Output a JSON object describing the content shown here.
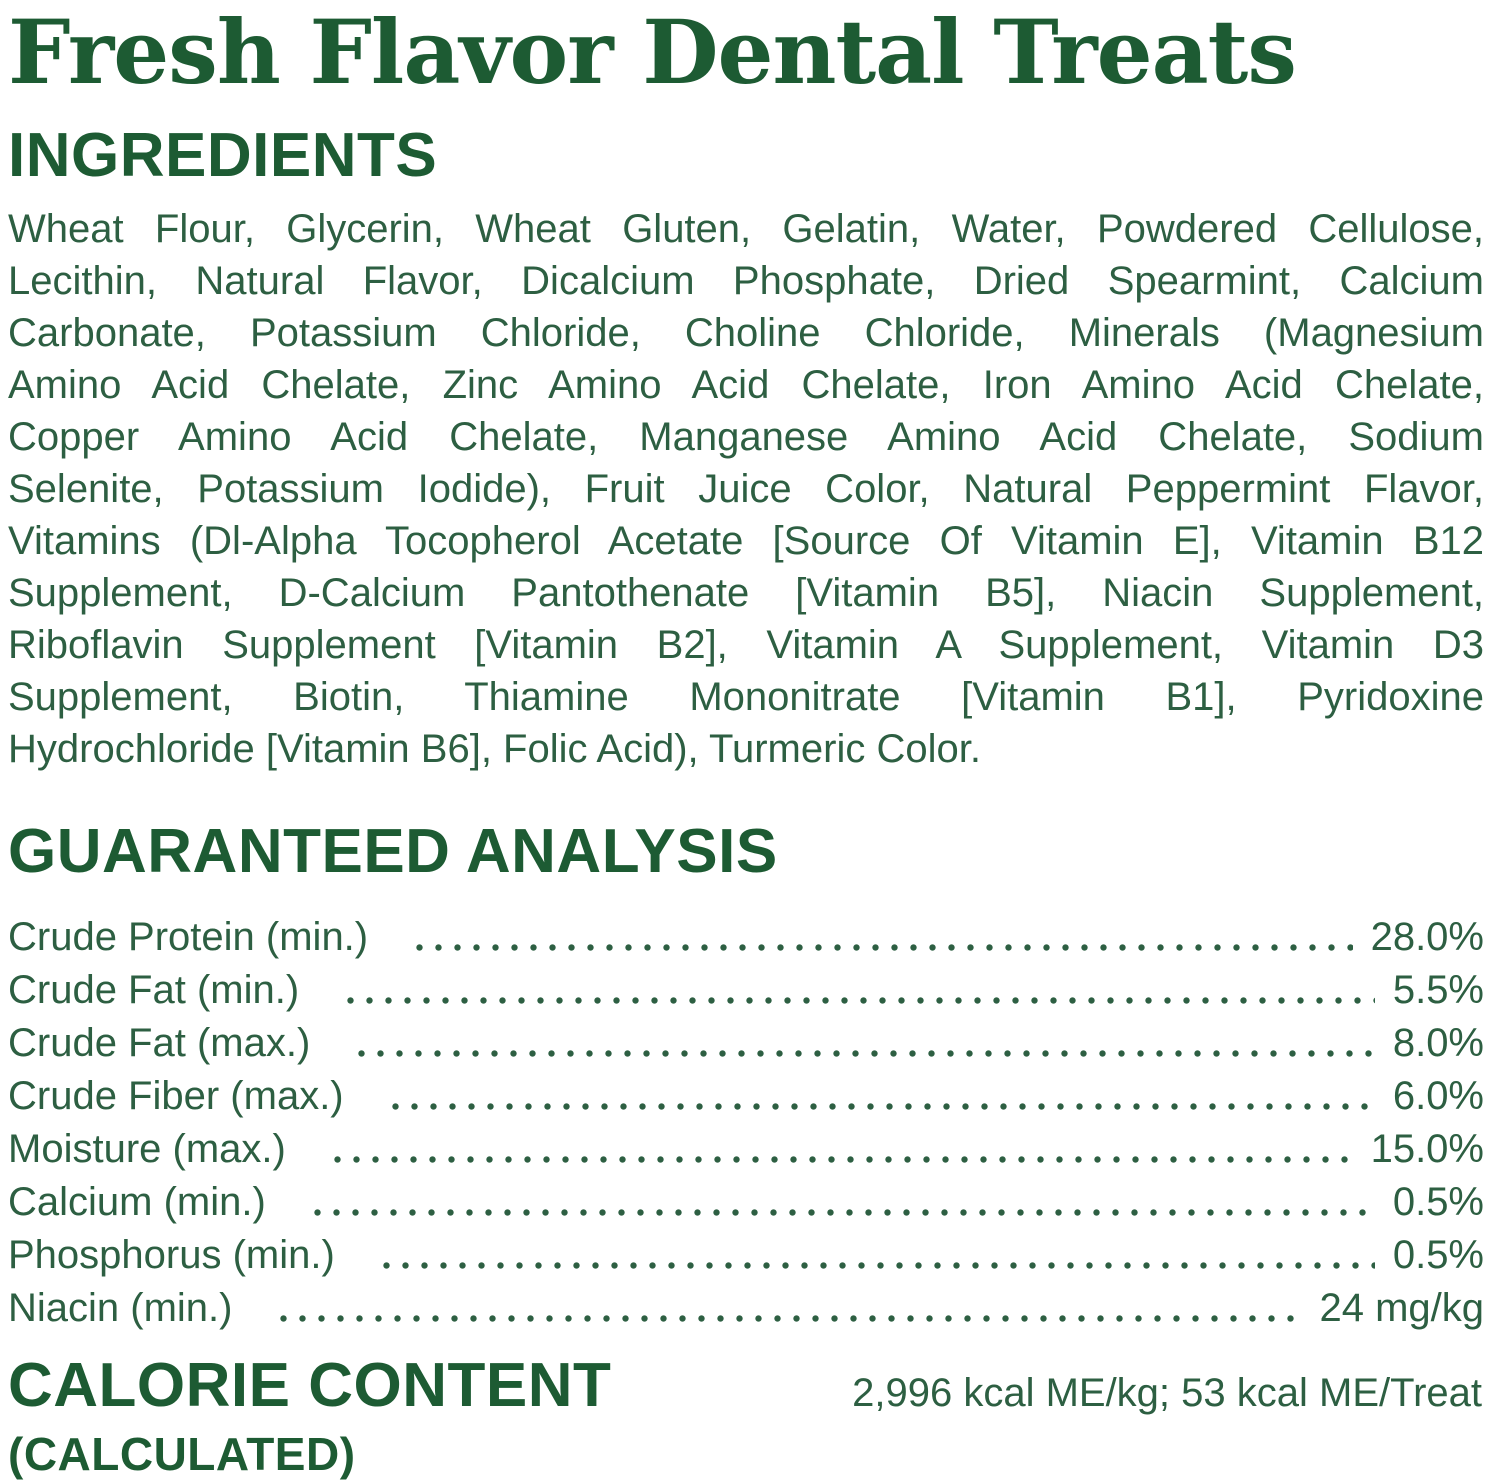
{
  "colors": {
    "heading": "#1d5b33",
    "body": "#2d5f42",
    "background": "#ffffff"
  },
  "title": "Fresh Flavor Dental Treats",
  "ingredients": {
    "heading": "INGREDIENTS",
    "lines": [
      "Wheat Flour, Glycerin, Wheat Gluten, Gelatin, Water, Powdered Cellulose,",
      "Lecithin, Natural Flavor, Dicalcium Phosphate, Dried Spearmint, Calcium",
      "Carbonate, Potassium Chloride, Choline Chloride, Minerals (Magnesium",
      "Amino Acid Chelate, Zinc Amino Acid Chelate, Iron Amino Acid Chelate,",
      "Copper Amino Acid Chelate, Manganese Amino Acid Chelate, Sodium",
      "Selenite, Potassium Iodide), Fruit Juice Color, Natural Peppermint Flavor,",
      "Vitamins (Dl-Alpha Tocopherol Acetate [Source Of Vitamin E], Vitamin B12",
      "Supplement, D-Calcium Pantothenate [Vitamin B5], Niacin Supplement,",
      "Riboflavin Supplement [Vitamin B2], Vitamin A Supplement, Vitamin D3",
      "Supplement, Biotin, Thiamine Mononitrate [Vitamin B1], Pyridoxine",
      "Hydrochloride [Vitamin B6], Folic Acid), Turmeric Color."
    ]
  },
  "guaranteed_analysis": {
    "heading": "GUARANTEED ANALYSIS",
    "rows": [
      {
        "label": "Crude Protein (min.)",
        "value": "28.0%"
      },
      {
        "label": "Crude Fat (min.)",
        "value": "5.5%"
      },
      {
        "label": "Crude Fat (max.)",
        "value": "8.0%"
      },
      {
        "label": "Crude Fiber (max.)",
        "value": "6.0%"
      },
      {
        "label": "Moisture (max.)",
        "value": "15.0%"
      },
      {
        "label": "Calcium (min.)",
        "value": "0.5%"
      },
      {
        "label": "Phosphorus (min.)",
        "value": "0.5%"
      },
      {
        "label": "Niacin (min.)",
        "value": "24 mg/kg"
      }
    ]
  },
  "calorie_content": {
    "heading": "CALORIE CONTENT",
    "subheading": "(CALCULATED)",
    "value": "2,996 kcal ME/kg; 53 kcal ME/Treat"
  }
}
